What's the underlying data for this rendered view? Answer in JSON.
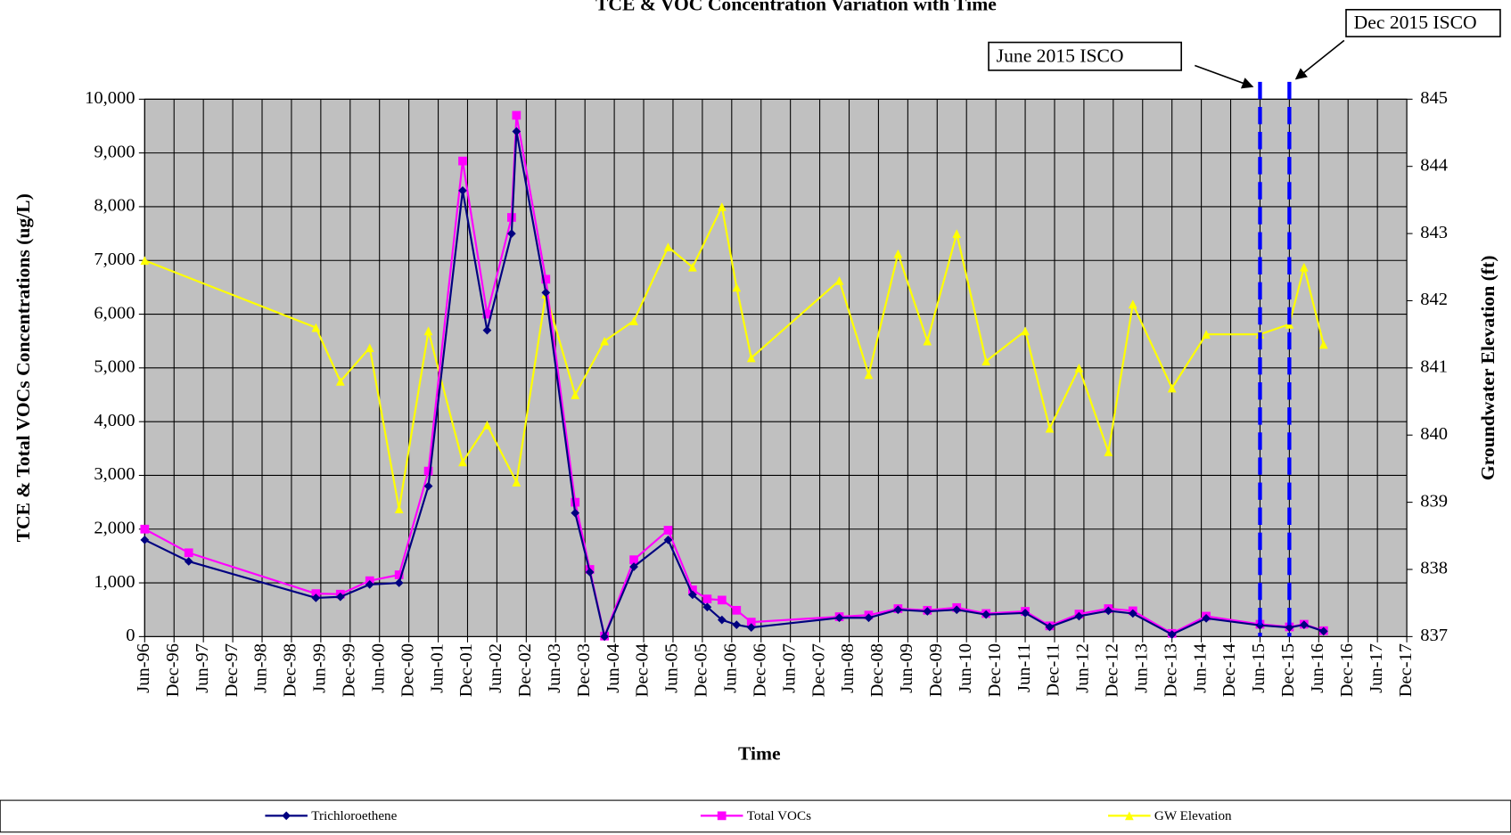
{
  "chart_data": {
    "type": "line",
    "title": "TCE & VOC Concentration Variation with Time",
    "x_label": "Time",
    "y_label": "TCE & Total VOCs Concentrations (ug/L)",
    "y2_label": "Groundwater Elevation (ft)",
    "xlim": [
      "1996-06",
      "2017-12"
    ],
    "xticks": [
      {
        "value": "1996-06",
        "label": "Jun-96"
      },
      {
        "value": "1996-12",
        "label": "Dec-96"
      },
      {
        "value": "1997-06",
        "label": "Jun-97"
      },
      {
        "value": "1997-12",
        "label": "Dec-97"
      },
      {
        "value": "1998-06",
        "label": "Jun-98"
      },
      {
        "value": "1998-12",
        "label": "Dec-98"
      },
      {
        "value": "1999-06",
        "label": "Jun-99"
      },
      {
        "value": "1999-12",
        "label": "Dec-99"
      },
      {
        "value": "2000-06",
        "label": "Jun-00"
      },
      {
        "value": "2000-12",
        "label": "Dec-00"
      },
      {
        "value": "2001-06",
        "label": "Jun-01"
      },
      {
        "value": "2001-12",
        "label": "Dec-01"
      },
      {
        "value": "2002-06",
        "label": "Jun-02"
      },
      {
        "value": "2002-12",
        "label": "Dec-02"
      },
      {
        "value": "2003-06",
        "label": "Jun-03"
      },
      {
        "value": "2003-12",
        "label": "Dec-03"
      },
      {
        "value": "2004-06",
        "label": "Jun-04"
      },
      {
        "value": "2004-12",
        "label": "Dec-04"
      },
      {
        "value": "2005-06",
        "label": "Jun-05"
      },
      {
        "value": "2005-12",
        "label": "Dec-05"
      },
      {
        "value": "2006-06",
        "label": "Jun-06"
      },
      {
        "value": "2006-12",
        "label": "Dec-06"
      },
      {
        "value": "2007-06",
        "label": "Jun-07"
      },
      {
        "value": "2007-12",
        "label": "Dec-07"
      },
      {
        "value": "2008-06",
        "label": "Jun-08"
      },
      {
        "value": "2008-12",
        "label": "Dec-08"
      },
      {
        "value": "2009-06",
        "label": "Jun-09"
      },
      {
        "value": "2009-12",
        "label": "Dec-09"
      },
      {
        "value": "2010-06",
        "label": "Jun-10"
      },
      {
        "value": "2010-12",
        "label": "Dec-10"
      },
      {
        "value": "2011-06",
        "label": "Jun-11"
      },
      {
        "value": "2011-12",
        "label": "Dec-11"
      },
      {
        "value": "2012-06",
        "label": "Jun-12"
      },
      {
        "value": "2012-12",
        "label": "Dec-12"
      },
      {
        "value": "2013-06",
        "label": "Jun-13"
      },
      {
        "value": "2013-12",
        "label": "Dec-13"
      },
      {
        "value": "2014-06",
        "label": "Jun-14"
      },
      {
        "value": "2014-12",
        "label": "Dec-14"
      },
      {
        "value": "2015-06",
        "label": "Jun-15"
      },
      {
        "value": "2015-12",
        "label": "Dec-15"
      },
      {
        "value": "2016-06",
        "label": "Jun-16"
      },
      {
        "value": "2016-12",
        "label": "Dec-16"
      },
      {
        "value": "2017-06",
        "label": "Jun-17"
      },
      {
        "value": "2017-12",
        "label": "Dec-17"
      }
    ],
    "ylim": [
      0,
      10000
    ],
    "yticks": [
      0,
      {
        "value": 1000,
        "label": "1,000"
      },
      {
        "value": 2000,
        "label": "2,000"
      },
      {
        "value": 3000,
        "label": "3,000"
      },
      {
        "value": 4000,
        "label": "4,000"
      },
      {
        "value": 5000,
        "label": "5,000"
      },
      {
        "value": 6000,
        "label": "6,000"
      },
      {
        "value": 7000,
        "label": "7,000"
      },
      {
        "value": 8000,
        "label": "8,000"
      },
      {
        "value": 9000,
        "label": "9,000"
      },
      {
        "value": 10000,
        "label": "10,000"
      }
    ],
    "y2lim": [
      837,
      845
    ],
    "y2ticks": [
      837,
      838,
      839,
      840,
      841,
      842,
      843,
      844,
      845
    ],
    "grid": true,
    "plot_background": "#c0c0c0",
    "series": [
      {
        "name": "Trichloroethene",
        "color": "#000080",
        "marker": "diamond",
        "x": [
          "1996-06",
          "1997-03",
          "1999-05",
          "1999-10",
          "2000-04",
          "2000-10",
          "2001-04",
          "2001-11",
          "2002-04",
          "2002-09",
          "2002-10",
          "2003-04",
          "2003-10",
          "2004-01",
          "2004-04",
          "2004-10",
          "2005-05",
          "2005-10",
          "2006-01",
          "2006-04",
          "2006-07",
          "2006-10",
          "2008-04",
          "2008-10",
          "2009-04",
          "2009-10",
          "2010-04",
          "2010-10",
          "2011-06",
          "2011-11",
          "2012-05",
          "2012-11",
          "2013-04",
          "2013-12",
          "2014-07",
          "2015-06",
          "2015-12",
          "2016-03",
          "2016-07"
        ],
        "values": [
          1800,
          1400,
          720,
          740,
          970,
          1000,
          2800,
          8300,
          5700,
          7500,
          9400,
          6400,
          2300,
          1200,
          0,
          1300,
          1800,
          780,
          550,
          310,
          220,
          170,
          350,
          350,
          500,
          470,
          500,
          410,
          440,
          180,
          380,
          480,
          430,
          40,
          340,
          210,
          170,
          220,
          100
        ]
      },
      {
        "name": "Total VOCs",
        "color": "#ff00ff",
        "marker": "square",
        "x": [
          "1996-06",
          "1997-03",
          "1999-05",
          "1999-10",
          "2000-04",
          "2000-10",
          "2001-04",
          "2001-11",
          "2002-04",
          "2002-09",
          "2002-10",
          "2003-04",
          "2003-10",
          "2004-01",
          "2004-04",
          "2004-10",
          "2005-05",
          "2005-10",
          "2006-01",
          "2006-04",
          "2006-07",
          "2006-10",
          "2008-04",
          "2008-10",
          "2009-04",
          "2009-10",
          "2010-04",
          "2010-10",
          "2011-06",
          "2011-11",
          "2012-05",
          "2012-11",
          "2013-04",
          "2013-12",
          "2014-07",
          "2015-06",
          "2015-12",
          "2016-03",
          "2016-07"
        ],
        "values": [
          2000,
          1560,
          800,
          790,
          1040,
          1150,
          3080,
          8850,
          6000,
          7800,
          9700,
          6650,
          2500,
          1250,
          10,
          1430,
          1980,
          870,
          700,
          680,
          490,
          270,
          370,
          400,
          520,
          490,
          540,
          430,
          470,
          200,
          420,
          520,
          480,
          60,
          380,
          230,
          180,
          230,
          110
        ]
      },
      {
        "name": "GW Elevation",
        "color": "#ffff00",
        "marker": "triangle",
        "axis": "y2",
        "x": [
          "1996-06",
          "1999-05",
          "1999-10",
          "2000-04",
          "2000-10",
          "2001-04",
          "2001-11",
          "2002-04",
          "2002-10",
          "2003-04",
          "2003-10",
          "2004-04",
          "2004-10",
          "2005-05",
          "2005-10",
          "2006-04",
          "2006-07",
          "2006-10",
          "2008-04",
          "2008-10",
          "2009-04",
          "2009-10",
          "2010-04",
          "2010-10",
          "2011-06",
          "2011-11",
          "2012-05",
          "2012-11",
          "2013-04",
          "2013-12",
          "2014-07",
          "2015-06",
          "2015-12",
          "2016-03",
          "2016-07"
        ],
        "values": [
          842.6,
          841.6,
          840.8,
          841.3,
          838.9,
          841.55,
          839.6,
          840.15,
          839.3,
          842.1,
          840.6,
          841.4,
          841.7,
          842.8,
          842.5,
          843.4,
          842.2,
          841.15,
          842.3,
          840.9,
          842.7,
          841.4,
          843.0,
          841.1,
          841.55,
          840.1,
          841.0,
          839.75,
          841.95,
          840.7,
          841.5,
          841.5,
          841.65,
          842.5,
          841.35
        ]
      }
    ],
    "annotations": [
      {
        "text": "June 2015 ISCO",
        "x": "2015-06",
        "color": "#0000ff"
      },
      {
        "text": "Dec 2015 ISCO",
        "x": "2015-12",
        "color": "#0000ff"
      }
    ]
  }
}
